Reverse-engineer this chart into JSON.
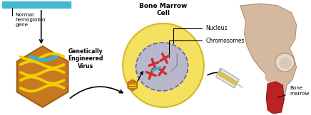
{
  "bg_color": "#ffffff",
  "title_bone_marrow": "Bone Marrow\nCell",
  "label_normal_hemo": "Normal\nhemoglobin\ngene",
  "label_genetically": "Genetically\nEngineered\nVirus",
  "label_nucleus": "Nucleus",
  "label_chromosomes": "Chromosomes",
  "label_bone_marrow": "Bone\nmarrow",
  "hex_color": "#c87820",
  "hex_dark": "#a06010",
  "dna_yellow": "#f0d000",
  "dna_blue": "#3ab0d0",
  "cell_color": "#f5e060",
  "cell_edge": "#d4b820",
  "nucleus_color": "#b8b8cc",
  "nucleus_edge": "#6060b0",
  "chromosome_red": "#cc3030",
  "bone_light": "#d4b8a0",
  "bone_mid": "#c4a888",
  "bone_dark": "#b09070",
  "marrow_red": "#bb2222",
  "arrow_color": "#000000",
  "cyan_bar": "#45b8d0",
  "mini_virus_color": "#c87820",
  "syringe_body": "#e8e8e8",
  "syringe_needle": "#c0c0c0"
}
